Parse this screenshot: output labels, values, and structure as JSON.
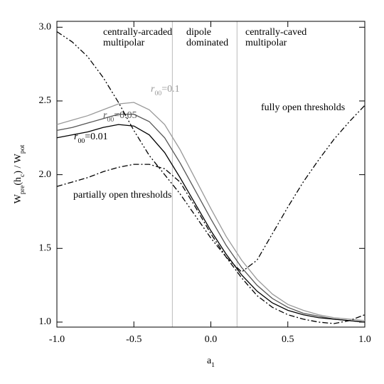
{
  "chart_data": {
    "type": "line",
    "xlabel": [
      {
        "text": "a"
      },
      {
        "text": "1",
        "sub": true
      }
    ],
    "ylabel": [
      {
        "text": "W"
      },
      {
        "text": "pre",
        "sub": true
      },
      {
        "text": "(h"
      },
      {
        "text": "c",
        "sub": true
      },
      {
        "text": ") / W"
      },
      {
        "text": "pot",
        "sub": true
      }
    ],
    "xlim": [
      -1,
      1
    ],
    "ylim": [
      0.966,
      3.04
    ],
    "xticks": [
      {
        "value": -1,
        "label": "-1.0"
      },
      {
        "value": -0.5,
        "label": "-0.5"
      },
      {
        "value": 0,
        "label": "0.0"
      },
      {
        "value": 0.5,
        "label": "0.5"
      },
      {
        "value": 1,
        "label": "1.0"
      }
    ],
    "yticks": [
      {
        "value": 1,
        "label": "1.0"
      },
      {
        "value": 1.5,
        "label": "1.5"
      },
      {
        "value": 2,
        "label": "2.0"
      },
      {
        "value": 2.5,
        "label": "2.5"
      },
      {
        "value": 3,
        "label": "3.0"
      }
    ],
    "region_boundaries": [
      -0.25,
      0.17
    ],
    "boundary_color": "#bbbbbb",
    "regions": [
      [
        "centrally-arcaded",
        "multipolar"
      ],
      [
        "dipole",
        "dominated"
      ],
      [
        "centrally-caved",
        "multipolar"
      ]
    ],
    "x": [
      -1,
      -0.9,
      -0.8,
      -0.7,
      -0.6,
      -0.5,
      -0.4,
      -0.3,
      -0.2,
      -0.1,
      0,
      0.1,
      0.2,
      0.3,
      0.4,
      0.5,
      0.6,
      0.7,
      0.8,
      0.9,
      1
    ],
    "series": [
      {
        "label": [
          {
            "text": "r",
            "italic": true
          },
          {
            "text": "00",
            "sub": true
          },
          {
            "text": "=0.1"
          }
        ],
        "color": "#999999",
        "dash": "solid",
        "values": [
          2.34,
          2.37,
          2.4,
          2.44,
          2.48,
          2.49,
          2.44,
          2.34,
          2.17,
          1.97,
          1.77,
          1.58,
          1.42,
          1.29,
          1.19,
          1.12,
          1.08,
          1.05,
          1.03,
          1.02,
          1.01
        ]
      },
      {
        "label": [
          {
            "text": "r",
            "italic": true
          },
          {
            "text": "00",
            "sub": true
          },
          {
            "text": "=0.05"
          }
        ],
        "color": "#555555",
        "dash": "solid",
        "values": [
          2.3,
          2.32,
          2.35,
          2.38,
          2.41,
          2.41,
          2.36,
          2.25,
          2.08,
          1.89,
          1.7,
          1.52,
          1.37,
          1.25,
          1.16,
          1.1,
          1.06,
          1.04,
          1.02,
          1.01,
          1.0
        ]
      },
      {
        "label": [
          {
            "text": "r",
            "italic": true
          },
          {
            "text": "00",
            "sub": true
          },
          {
            "text": "=0.01"
          }
        ],
        "color": "#000000",
        "dash": "solid",
        "values": [
          2.25,
          2.27,
          2.29,
          2.32,
          2.34,
          2.33,
          2.27,
          2.15,
          1.98,
          1.8,
          1.62,
          1.46,
          1.32,
          1.21,
          1.13,
          1.08,
          1.05,
          1.03,
          1.02,
          1.01,
          1.0
        ]
      },
      {
        "label": [
          {
            "text": "fully open thresholds"
          }
        ],
        "color": "#000000",
        "dash": "dash-dot-dot",
        "values": [
          2.97,
          2.9,
          2.8,
          2.66,
          2.49,
          2.3,
          2.13,
          2.0,
          1.87,
          1.72,
          1.57,
          1.44,
          1.34,
          1.42,
          1.6,
          1.78,
          1.95,
          2.1,
          2.24,
          2.36,
          2.47
        ]
      },
      {
        "label": [
          {
            "text": "partially open thresholds"
          }
        ],
        "color": "#000000",
        "dash": "dash-dot",
        "values": [
          1.92,
          1.95,
          1.98,
          2.02,
          2.05,
          2.07,
          2.07,
          2.04,
          1.95,
          1.78,
          1.6,
          1.44,
          1.3,
          1.18,
          1.1,
          1.05,
          1.02,
          1.0,
          0.99,
          1.01,
          1.05
        ]
      }
    ]
  }
}
